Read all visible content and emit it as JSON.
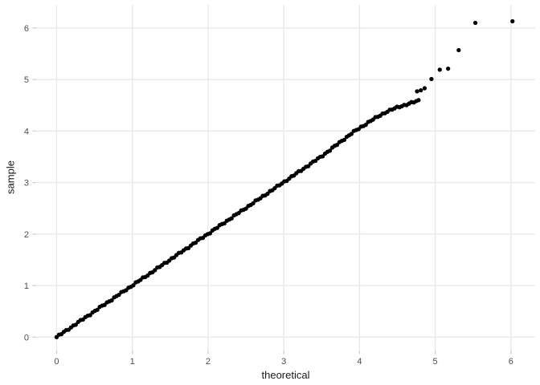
{
  "chart_data": {
    "type": "scatter",
    "title": "",
    "xlabel": "theoretical",
    "ylabel": "sample",
    "xlim": [
      -0.27,
      6.32
    ],
    "ylim": [
      -0.26,
      6.45
    ],
    "x_ticks": [
      0,
      1,
      2,
      3,
      4,
      5,
      6
    ],
    "y_ticks": [
      0,
      1,
      2,
      3,
      4,
      5,
      6
    ],
    "x_tick_labels": [
      "0",
      "1",
      "2",
      "3",
      "4",
      "5",
      "6"
    ],
    "y_tick_labels": [
      "0",
      "1",
      "2",
      "3",
      "4",
      "5",
      "6"
    ],
    "grid": "major-only",
    "legend": "none",
    "panel_background": "#ffffff",
    "gridline_color": "#e9e9e9",
    "tick_mark_color": "#d2d2d2",
    "axis_text_color": "#4d4d4d",
    "axis_title_color": "#1a1a1a",
    "point_color": "#000000",
    "point_radius_px": 2.65,
    "main_line": {
      "comment": "dense chain of overlapping points hugging y=x from origin to ~ (4.78, 4.59)",
      "t_start": 0.0,
      "t_end": 4.78,
      "n": 152,
      "deviation_profile": [
        [
          0.0,
          0.0
        ],
        [
          3.5,
          0.01
        ],
        [
          3.9,
          0.06
        ],
        [
          4.15,
          0.05
        ],
        [
          4.35,
          0.02
        ],
        [
          4.5,
          -0.04
        ],
        [
          4.65,
          -0.12
        ],
        [
          4.78,
          -0.19
        ]
      ],
      "jitter_amplitude": 0.013
    },
    "tail_points": [
      [
        4.76,
        4.77
      ],
      [
        4.81,
        4.79
      ],
      [
        4.86,
        4.83
      ],
      [
        4.95,
        5.01
      ],
      [
        5.06,
        5.19
      ],
      [
        5.17,
        5.21
      ],
      [
        5.31,
        5.57
      ],
      [
        5.53,
        6.1
      ],
      [
        6.02,
        6.13
      ]
    ]
  }
}
